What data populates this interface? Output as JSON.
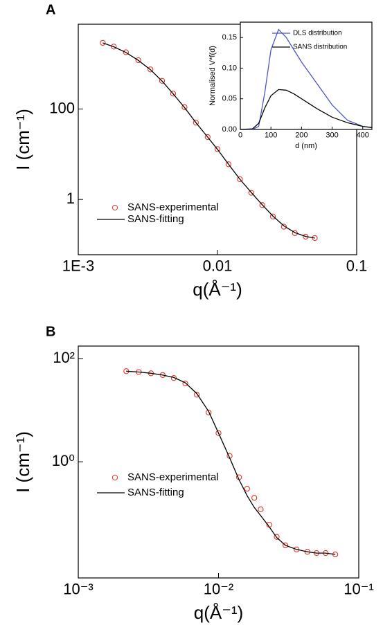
{
  "chart_data": [
    {
      "type": "line",
      "panel": "A",
      "xlog": true,
      "ylog": true,
      "xlabel": "q(Å⁻¹)",
      "ylabel": "I (cm⁻¹)",
      "xlim": [
        0.001,
        0.1
      ],
      "ylim": [
        0.06,
        7500
      ],
      "xticks": [
        {
          "value": 0.001,
          "label": "1E-3"
        },
        0.01,
        0.1
      ],
      "yticks": [
        1,
        100
      ],
      "x": [
        0.0015,
        0.0018,
        0.0022,
        0.0027,
        0.0033,
        0.004,
        0.0048,
        0.0058,
        0.007,
        0.0085,
        0.01,
        0.012,
        0.0145,
        0.0175,
        0.021,
        0.025,
        0.03,
        0.036,
        0.043,
        0.05
      ],
      "series": [
        {
          "name": "SANS-experimental",
          "color": "#e8312a",
          "marker": "circle",
          "values": [
            2900,
            2400,
            1800,
            1200,
            750,
            420,
            220,
            110,
            50,
            24,
            13,
            6,
            2.8,
            1.4,
            0.75,
            0.42,
            0.25,
            0.18,
            0.15,
            0.14
          ]
        },
        {
          "name": "SANS-fitting",
          "color": "#000000",
          "marker": "none",
          "values": [
            2900,
            2380,
            1780,
            1190,
            740,
            415,
            218,
            108,
            50,
            24,
            12.8,
            6,
            2.8,
            1.42,
            0.76,
            0.43,
            0.26,
            0.185,
            0.152,
            0.14
          ]
        }
      ]
    },
    {
      "type": "line",
      "panel": "",
      "xlog": false,
      "ylog": false,
      "xlabel": "d (nm)",
      "ylabel": "Normalised V*f(d)",
      "xlim": [
        0,
        430
      ],
      "ylim": [
        0,
        0.175
      ],
      "xticks": [
        0,
        100,
        200,
        300,
        400
      ],
      "yticks": [
        {
          "value": 0,
          "label": "0.00"
        },
        {
          "value": 0.05,
          "label": "0.05"
        },
        {
          "value": 0.1,
          "label": "0.10"
        },
        0.15
      ],
      "x": [
        0,
        40,
        60,
        80,
        100,
        125,
        150,
        175,
        200,
        250,
        300,
        350,
        400,
        430
      ],
      "series": [
        {
          "name": "DLS distribution",
          "color": "#4a56c8",
          "marker": "none",
          "values": [
            0,
            0,
            0.005,
            0.06,
            0.13,
            0.163,
            0.15,
            0.13,
            0.11,
            0.075,
            0.04,
            0.015,
            0.005,
            0.003
          ]
        },
        {
          "name": "SANS distribution",
          "color": "#000000",
          "marker": "none",
          "values": [
            0,
            0.001,
            0.01,
            0.035,
            0.055,
            0.065,
            0.064,
            0.058,
            0.05,
            0.034,
            0.02,
            0.011,
            0.005,
            0.003
          ]
        }
      ]
    },
    {
      "type": "line",
      "panel": "B",
      "xlog": true,
      "ylog": true,
      "xlabel": "q(Å⁻¹)",
      "ylabel": "I (cm⁻¹)",
      "xlim": [
        0.001,
        0.1
      ],
      "ylim": [
        0.0056,
        175
      ],
      "xticks": [
        {
          "value": 0.001,
          "label": "10⁻³"
        },
        {
          "value": 0.01,
          "label": "10⁻²"
        },
        {
          "value": 0.1,
          "label": "10⁻¹"
        }
      ],
      "yticks": [
        {
          "value": 1,
          "label": "10⁰"
        },
        {
          "value": 100,
          "label": "10²"
        }
      ],
      "x": [
        0.0022,
        0.0027,
        0.0033,
        0.004,
        0.0048,
        0.0058,
        0.007,
        0.0085,
        0.01,
        0.012,
        0.014,
        0.016,
        0.018,
        0.02,
        0.023,
        0.026,
        0.03,
        0.036,
        0.043,
        0.05,
        0.058,
        0.068
      ],
      "series": [
        {
          "name": "SANS-experimental",
          "color": "#e8312a",
          "marker": "circle",
          "values": [
            57,
            55,
            52,
            48,
            42,
            33,
            20,
            9,
            3.6,
            1.3,
            0.5,
            0.3,
            0.2,
            0.12,
            0.06,
            0.035,
            0.024,
            0.02,
            0.018,
            0.017,
            0.017,
            0.016
          ]
        },
        {
          "name": "SANS-fitting",
          "color": "#000000",
          "marker": "none",
          "values": [
            57,
            55,
            52,
            48,
            43,
            34,
            21,
            9.5,
            3.6,
            1.2,
            0.45,
            0.22,
            0.13,
            0.09,
            0.055,
            0.034,
            0.024,
            0.02,
            0.018,
            0.017,
            0.017,
            0.016
          ]
        }
      ]
    }
  ]
}
